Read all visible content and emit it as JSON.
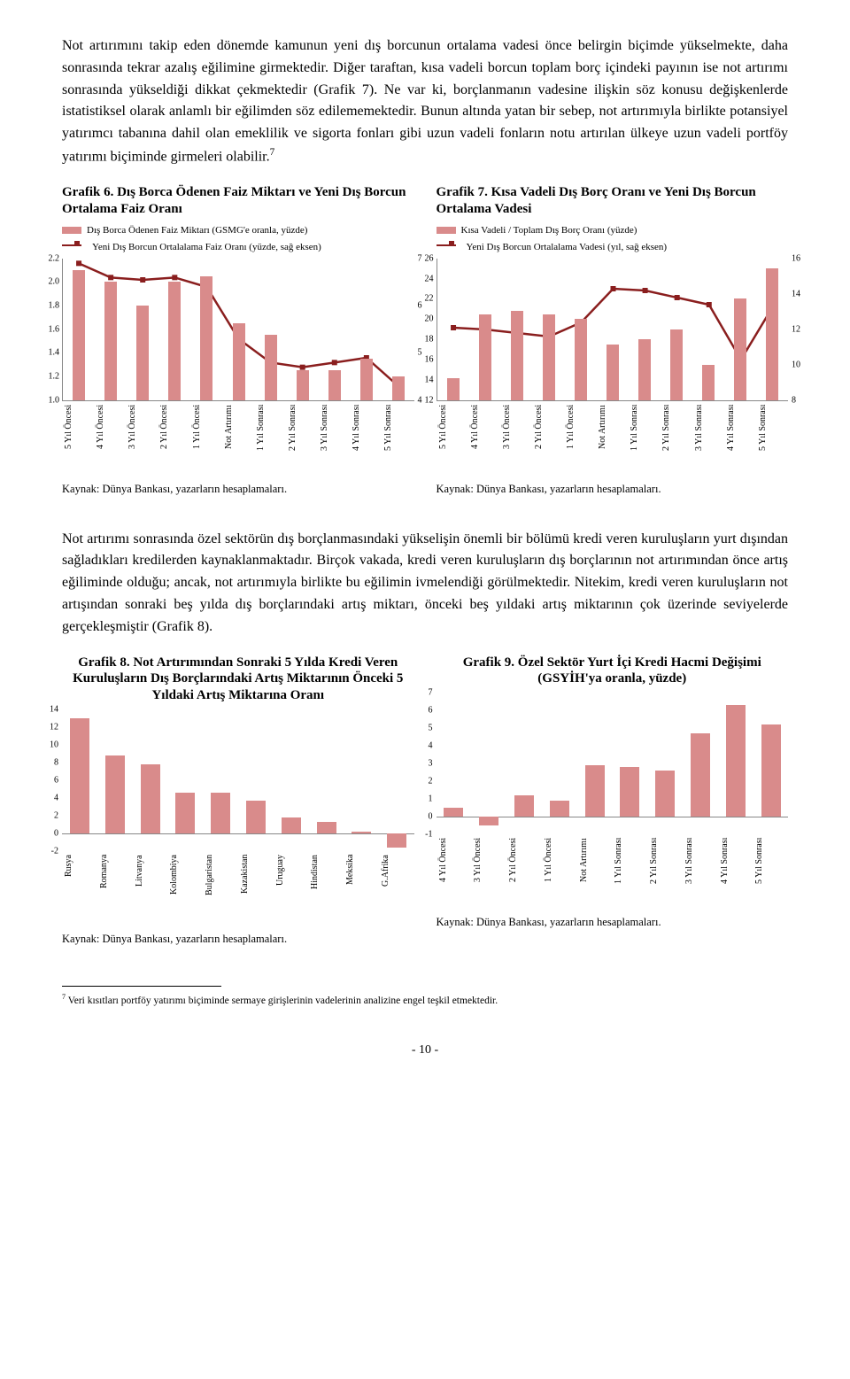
{
  "colors": {
    "bar": "#d98b8b",
    "line": "#8a1e1e",
    "marker": "#8a1e1e",
    "text": "#000000",
    "axis": "#888888"
  },
  "para1": "Not artırımını takip eden dönemde kamunun yeni dış borcunun ortalama vadesi önce belirgin biçimde yükselmekte, daha sonrasında tekrar azalış eğilimine girmektedir. Diğer taraftan, kısa vadeli borcun toplam borç içindeki payının ise not artırımı sonrasında yükseldiği dikkat çekmektedir (Grafik 7). Ne var ki, borçlanmanın vadesine ilişkin söz konusu değişkenlerde istatistiksel olarak anlamlı bir eğilimden söz edilememektedir. Bunun altında yatan bir sebep, not artırımıyla birlikte potansiyel yatırımcı tabanına dahil olan emeklilik ve sigorta fonları gibi uzun vadeli fonların notu artırılan ülkeye uzun vadeli portföy yatırımı biçiminde girmeleri olabilir.",
  "para1_sup": "7",
  "chart6": {
    "title": "Grafik 6. Dış Borca Ödenen Faiz Miktarı ve Yeni Dış Borcun Ortalama Faiz Oranı",
    "legend_bar": "Dış Borca Ödenen Faiz Miktarı (GSMG'e oranla, yüzde)",
    "legend_line": "Yeni Dış Borcun Ortalalama Faiz Oranı (yüzde, sağ eksen)",
    "left_ticks": [
      "2.2",
      "2.0",
      "1.8",
      "1.6",
      "1.4",
      "1.2",
      "1.0"
    ],
    "right_ticks": [
      "7",
      "6",
      "5",
      "4"
    ],
    "left_min": 1.0,
    "left_max": 2.2,
    "right_min": 4,
    "right_max": 7,
    "categories": [
      "5 Yıl Öncesi",
      "4 Yıl Öncesi",
      "3 Yıl Öncesi",
      "2 Yıl Öncesi",
      "1 Yıl Öncesi",
      "Not Artırımı",
      "1 Yıl Sonrası",
      "2 Yıl Sonrası",
      "3 Yıl Sonrası",
      "4 Yıl Sonrası",
      "5 Yıl Sonrası"
    ],
    "bar_values": [
      2.1,
      2.0,
      1.8,
      2.0,
      2.05,
      1.65,
      1.55,
      1.25,
      1.25,
      1.35,
      1.2
    ],
    "line_values": [
      6.9,
      6.6,
      6.55,
      6.6,
      6.4,
      5.3,
      4.8,
      4.7,
      4.8,
      4.9,
      4.3
    ],
    "source": "Kaynak: Dünya Bankası, yazarların hesaplamaları."
  },
  "chart7": {
    "title": "Grafik 7. Kısa Vadeli Dış Borç Oranı ve Yeni Dış Borcun Ortalama Vadesi",
    "legend_bar": "Kısa Vadeli / Toplam Dış Borç Oranı (yüzde)",
    "legend_line": "Yeni Dış Borcun Ortalalama Vadesi (yıl, sağ eksen)",
    "left_ticks": [
      "26",
      "24",
      "22",
      "20",
      "18",
      "16",
      "14",
      "12"
    ],
    "right_ticks": [
      "16",
      "14",
      "12",
      "10",
      "8"
    ],
    "left_min": 12,
    "left_max": 26,
    "right_min": 8,
    "right_max": 16,
    "categories": [
      "5 Yıl Öncesi",
      "4 Yıl Öncesi",
      "3 Yıl Öncesi",
      "2 Yıl Öncesi",
      "1 Yıl Öncesi",
      "Not Artırımı",
      "1 Yıl Sonrası",
      "2 Yıl Sonrası",
      "3 Yıl Sonrası",
      "4 Yıl Sonrası",
      "5 Yıl Sonrası"
    ],
    "bar_values": [
      14.2,
      20.5,
      20.8,
      20.5,
      20.0,
      17.5,
      18.0,
      19.0,
      15.5,
      22.0,
      25.0
    ],
    "line_values": [
      12.1,
      12.0,
      11.8,
      11.6,
      12.4,
      14.3,
      14.2,
      13.8,
      13.4,
      10.3,
      13.3
    ],
    "source": "Kaynak: Dünya Bankası, yazarların hesaplamaları."
  },
  "para2": "Not artırımı sonrasında özel sektörün dış borçlanmasındaki yükselişin önemli bir bölümü kredi veren kuruluşların yurt dışından sağladıkları kredilerden kaynaklanmaktadır. Birçok vakada, kredi veren kuruluşların dış borçlarının not artırımından önce artış eğiliminde olduğu; ancak, not artırımıyla birlikte bu eğilimin ivmelendiği görülmektedir. Nitekim, kredi veren kuruluşların not artışından sonraki beş yılda dış borçlarındaki artış miktarı, önceki beş yıldaki artış miktarının çok üzerinde seviyelerde gerçekleşmiştir (Grafik 8).",
  "chart8": {
    "title": "Grafik 8. Not Artırımından Sonraki 5 Yılda Kredi Veren Kuruluşların Dış Borçlarındaki Artış Miktarının Önceki 5 Yıldaki Artış Miktarına Oranı",
    "left_ticks": [
      "14",
      "12",
      "10",
      "8",
      "6",
      "4",
      "2",
      "0",
      "-2"
    ],
    "min": -2,
    "max": 14,
    "categories": [
      "Rusya",
      "Romanya",
      "Litvanya",
      "Kolombiya",
      "Bulgaristan",
      "Kazakistan",
      "Uruguay",
      "Hindistan",
      "Meksika",
      "G.Afrika"
    ],
    "values": [
      13.0,
      8.8,
      7.8,
      4.6,
      4.6,
      3.7,
      1.8,
      1.3,
      0.2,
      -1.6
    ],
    "source": "Kaynak: Dünya Bankası, yazarların hesaplamaları."
  },
  "chart9": {
    "title": "Grafik 9. Özel Sektör Yurt İçi Kredi Hacmi Değişimi (GSYİH'ya oranla, yüzde)",
    "left_ticks": [
      "7",
      "6",
      "5",
      "4",
      "3",
      "2",
      "1",
      "0",
      "-1"
    ],
    "min": -1,
    "max": 7,
    "categories": [
      "4 Yıl Öncesi",
      "3 Yıl Öncesi",
      "2 Yıl Öncesi",
      "1 Yıl Öncesi",
      "Not Artırımı",
      "1 Yıl Sonrası",
      "2 Yıl Sonrası",
      "3 Yıl Sonrası",
      "4 Yıl Sonrası",
      "5 Yıl Sonrası"
    ],
    "values": [
      0.5,
      -0.5,
      1.2,
      0.9,
      2.9,
      2.8,
      2.6,
      4.7,
      6.3,
      5.2
    ],
    "source": "Kaynak: Dünya Bankası, yazarların hesaplamaları."
  },
  "footnote_marker": "7",
  "footnote_text": " Veri kısıtları portföy yatırımı biçiminde sermaye girişlerinin vadelerinin analizine engel teşkil etmektedir.",
  "page_number": "- 10 -"
}
